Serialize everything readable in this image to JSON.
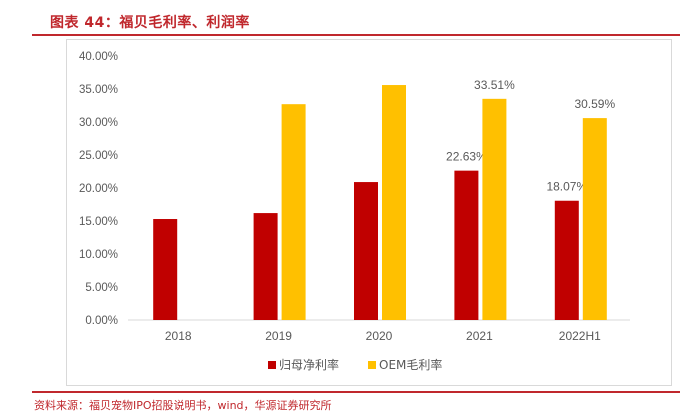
{
  "title": "图表 44：福贝毛利率、利润率",
  "source": "资料来源：福贝宠物IPO招股说明书，wind，华源证券研究所",
  "chart_data": {
    "type": "bar",
    "categories": [
      "2018",
      "2019",
      "2020",
      "2021",
      "2022H1"
    ],
    "series": [
      {
        "name": "归母净利率",
        "color": "#c00000",
        "values": [
          15.3,
          16.2,
          20.9,
          22.63,
          18.07
        ],
        "labels": [
          null,
          null,
          null,
          "22.63%",
          "18.07%"
        ]
      },
      {
        "name": "OEM毛利率",
        "color": "#ffc000",
        "values": [
          null,
          32.7,
          35.6,
          33.51,
          30.59
        ],
        "labels": [
          null,
          null,
          null,
          "33.51%",
          "30.59%"
        ]
      }
    ],
    "yticks": [
      "0.00%",
      "5.00%",
      "10.00%",
      "15.00%",
      "20.00%",
      "25.00%",
      "30.00%",
      "35.00%",
      "40.00%"
    ],
    "ylim": [
      0,
      40
    ],
    "legend": "bottom"
  }
}
